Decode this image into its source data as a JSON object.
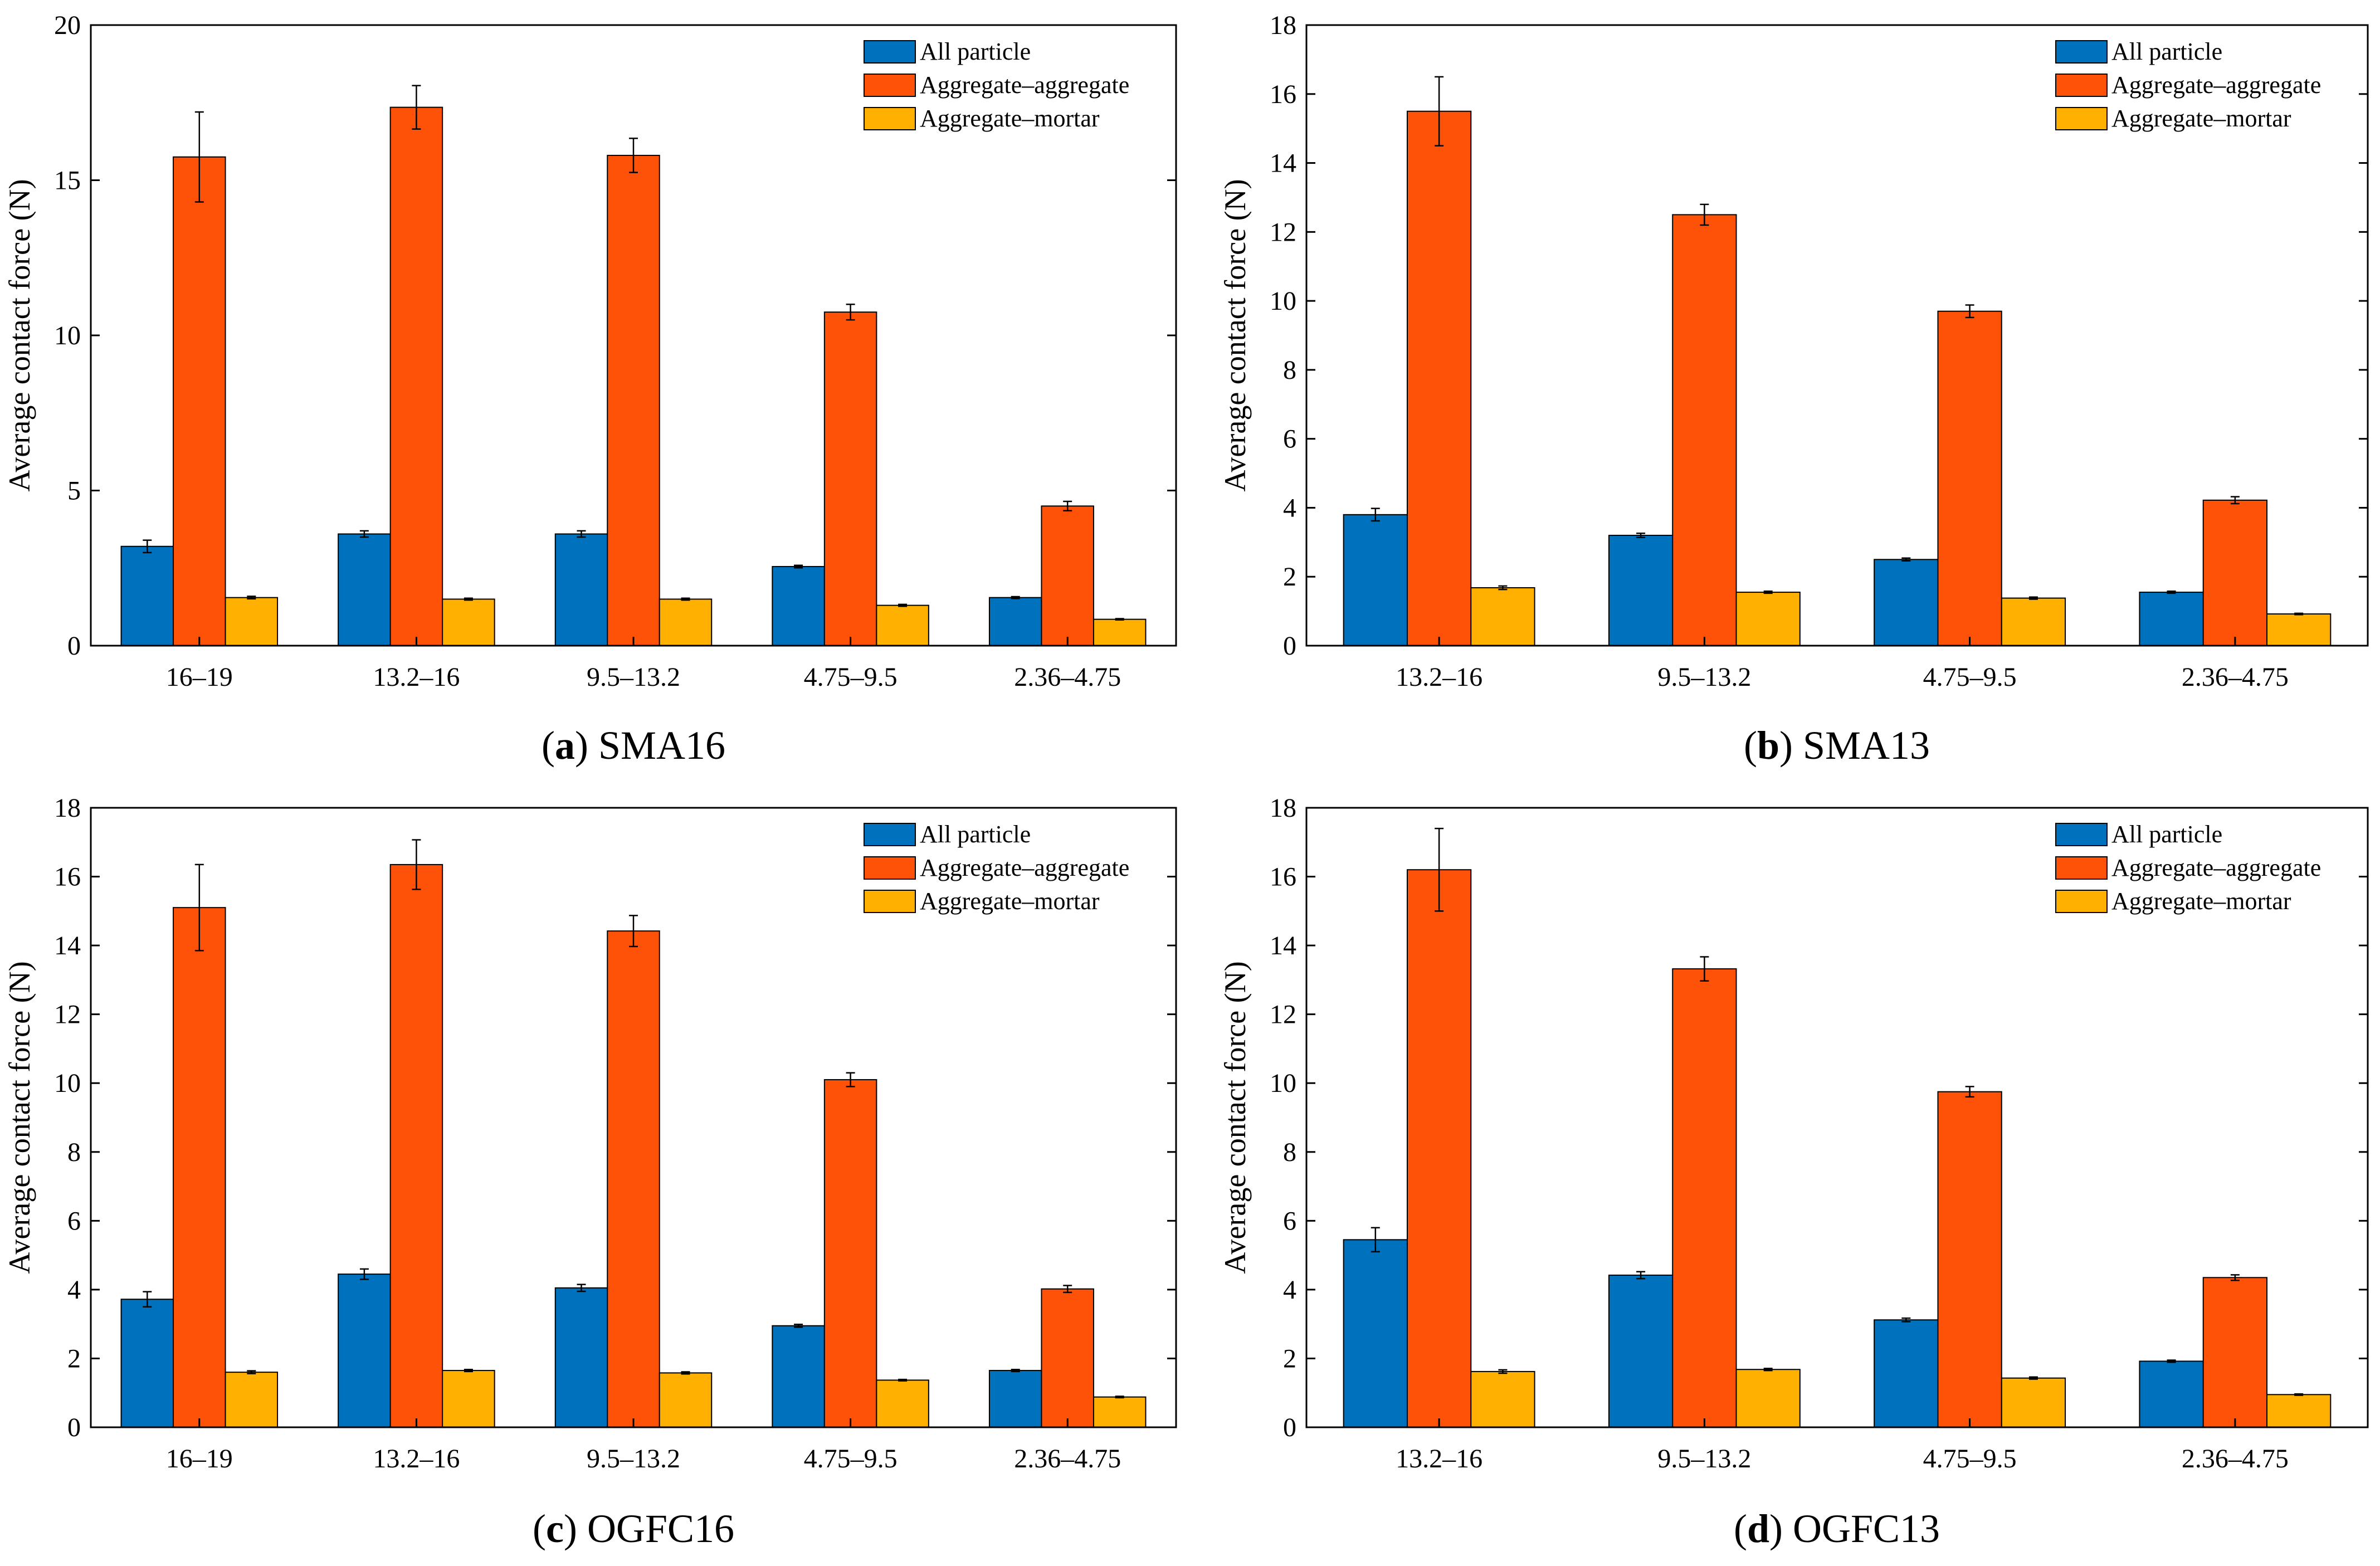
{
  "colors": {
    "all_particle": "#0072BD",
    "aggregate_aggregate": "#FF5209",
    "aggregate_mortar": "#FFB000",
    "axis": "#000000",
    "background": "#FFFFFF"
  },
  "chart_data": [
    {
      "type": "bar",
      "panel": "a",
      "caption_letter": "a",
      "caption_name": "SMA16",
      "ylabel": "Average contact force (N)",
      "ylim": [
        0,
        20
      ],
      "yticks": [
        0,
        5,
        10,
        15,
        20
      ],
      "categories": [
        "16–19",
        "13.2–16",
        "9.5–13.2",
        "4.75–9.5",
        "2.36–4.75"
      ],
      "legend_position": "top-right",
      "series": [
        {
          "name": "All particle",
          "color_key": "all_particle",
          "values": [
            3.2,
            3.6,
            3.6,
            2.55,
            1.55
          ],
          "errors": [
            0.2,
            0.1,
            0.1,
            0.04,
            0.03
          ]
        },
        {
          "name": "Aggregate–aggregate",
          "color_key": "aggregate_aggregate",
          "values": [
            15.75,
            17.35,
            15.8,
            10.75,
            4.5
          ],
          "errors": [
            1.45,
            0.7,
            0.55,
            0.25,
            0.15
          ]
        },
        {
          "name": "Aggregate–mortar",
          "color_key": "aggregate_mortar",
          "values": [
            1.55,
            1.5,
            1.5,
            1.3,
            0.85
          ],
          "errors": [
            0.04,
            0.03,
            0.03,
            0.03,
            0.02
          ]
        }
      ]
    },
    {
      "type": "bar",
      "panel": "b",
      "caption_letter": "b",
      "caption_name": "SMA13",
      "ylabel": "Average contact force (N)",
      "ylim": [
        0,
        18
      ],
      "yticks": [
        0,
        2,
        4,
        6,
        8,
        10,
        12,
        14,
        16,
        18
      ],
      "categories": [
        "13.2–16",
        "9.5–13.2",
        "4.75–9.5",
        "2.36–4.75"
      ],
      "legend_position": "top-right",
      "series": [
        {
          "name": "All particle",
          "color_key": "all_particle",
          "values": [
            3.8,
            3.2,
            2.5,
            1.55
          ],
          "errors": [
            0.18,
            0.06,
            0.04,
            0.03
          ]
        },
        {
          "name": "Aggregate–aggregate",
          "color_key": "aggregate_aggregate",
          "values": [
            15.5,
            12.5,
            9.7,
            4.22
          ],
          "errors": [
            1.0,
            0.3,
            0.18,
            0.1
          ]
        },
        {
          "name": "Aggregate–mortar",
          "color_key": "aggregate_mortar",
          "values": [
            1.68,
            1.55,
            1.38,
            0.92
          ],
          "errors": [
            0.05,
            0.03,
            0.03,
            0.02
          ]
        }
      ]
    },
    {
      "type": "bar",
      "panel": "c",
      "caption_letter": "c",
      "caption_name": "OGFC16",
      "ylabel": "Average contact force (N)",
      "ylim": [
        0,
        18
      ],
      "yticks": [
        0,
        2,
        4,
        6,
        8,
        10,
        12,
        14,
        16,
        18
      ],
      "categories": [
        "16–19",
        "13.2–16",
        "9.5–13.2",
        "4.75–9.5",
        "2.36–4.75"
      ],
      "legend_position": "top-right",
      "series": [
        {
          "name": "All particle",
          "color_key": "all_particle",
          "values": [
            3.72,
            4.45,
            4.05,
            2.95,
            1.65
          ],
          "errors": [
            0.22,
            0.15,
            0.1,
            0.04,
            0.03
          ]
        },
        {
          "name": "Aggregate–aggregate",
          "color_key": "aggregate_aggregate",
          "values": [
            15.1,
            16.35,
            14.42,
            10.1,
            4.02
          ],
          "errors": [
            1.25,
            0.72,
            0.45,
            0.2,
            0.1
          ]
        },
        {
          "name": "Aggregate–mortar",
          "color_key": "aggregate_mortar",
          "values": [
            1.6,
            1.65,
            1.58,
            1.37,
            0.88
          ],
          "errors": [
            0.04,
            0.03,
            0.03,
            0.02,
            0.02
          ]
        }
      ]
    },
    {
      "type": "bar",
      "panel": "d",
      "caption_letter": "d",
      "caption_name": "OGFC13",
      "ylabel": "Average contact force (N)",
      "ylim": [
        0,
        18
      ],
      "yticks": [
        0,
        2,
        4,
        6,
        8,
        10,
        12,
        14,
        16,
        18
      ],
      "categories": [
        "13.2–16",
        "9.5–13.2",
        "4.75–9.5",
        "2.36–4.75"
      ],
      "legend_position": "top-right",
      "series": [
        {
          "name": "All particle",
          "color_key": "all_particle",
          "values": [
            5.45,
            4.42,
            3.12,
            1.92
          ],
          "errors": [
            0.35,
            0.1,
            0.05,
            0.03
          ]
        },
        {
          "name": "Aggregate–aggregate",
          "color_key": "aggregate_aggregate",
          "values": [
            16.2,
            13.32,
            9.75,
            4.35
          ],
          "errors": [
            1.2,
            0.35,
            0.15,
            0.08
          ]
        },
        {
          "name": "Aggregate–mortar",
          "color_key": "aggregate_mortar",
          "values": [
            1.62,
            1.68,
            1.43,
            0.95
          ],
          "errors": [
            0.05,
            0.03,
            0.03,
            0.02
          ]
        }
      ]
    }
  ]
}
